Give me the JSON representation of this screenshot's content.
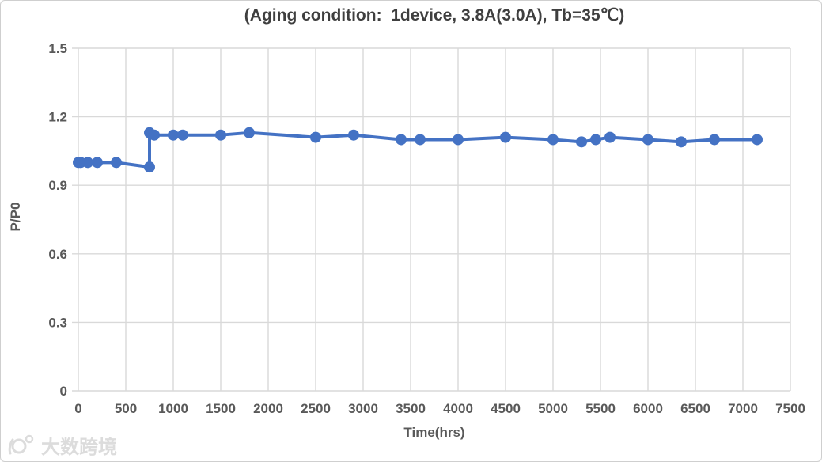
{
  "window": {
    "background": "#ffffff",
    "border_color": "#cfcfcf"
  },
  "chart_data": {
    "type": "line",
    "title": "(Aging condition:  1device, 3.8A(3.0A), Tb=35℃)",
    "xlabel": "Time(hrs)",
    "ylabel": "P/P0",
    "xlim": [
      0,
      7500
    ],
    "ylim": [
      0,
      1.5
    ],
    "x_ticks": [
      0,
      500,
      1000,
      1500,
      2000,
      2500,
      3000,
      3500,
      4000,
      4500,
      5000,
      5500,
      6000,
      6500,
      7000,
      7500
    ],
    "y_ticks": [
      0,
      0.3,
      0.6,
      0.9,
      1.2,
      1.5
    ],
    "y_tick_labels": [
      "0",
      "0.3",
      "0.6",
      "0.9",
      "1.2",
      "1.5"
    ],
    "grid": true,
    "legend_position": "none",
    "colors": {
      "series": "#4472c4",
      "gridline": "#d9d9d9",
      "tick_label": "#595959",
      "title": "#3f3f3f"
    },
    "series": [
      {
        "name": "P/P0",
        "color": "#4472c4",
        "marker": "circle",
        "points": [
          [
            0,
            1.0
          ],
          [
            25,
            1.0
          ],
          [
            100,
            1.0
          ],
          [
            200,
            1.0
          ],
          [
            400,
            1.0
          ],
          [
            750,
            0.98
          ],
          [
            750,
            1.13
          ],
          [
            800,
            1.12
          ],
          [
            1000,
            1.12
          ],
          [
            1100,
            1.12
          ],
          [
            1500,
            1.12
          ],
          [
            1800,
            1.13
          ],
          [
            2500,
            1.11
          ],
          [
            2900,
            1.12
          ],
          [
            3400,
            1.1
          ],
          [
            3600,
            1.1
          ],
          [
            4000,
            1.1
          ],
          [
            4500,
            1.11
          ],
          [
            5000,
            1.1
          ],
          [
            5300,
            1.09
          ],
          [
            5450,
            1.1
          ],
          [
            5600,
            1.11
          ],
          [
            6000,
            1.1
          ],
          [
            6350,
            1.09
          ],
          [
            6700,
            1.1
          ],
          [
            7150,
            1.1
          ]
        ]
      }
    ]
  },
  "watermark": {
    "logo": "10100-logo",
    "text": "大数跨境",
    "color": "#dcdcdc"
  }
}
